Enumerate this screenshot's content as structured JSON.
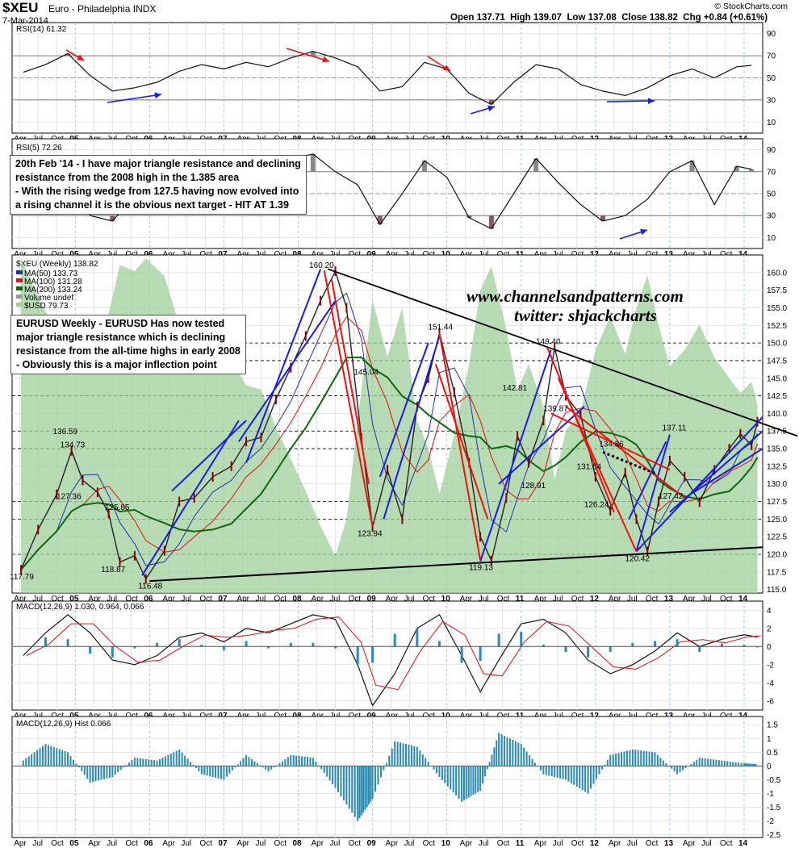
{
  "header": {
    "symbol": "$XEU",
    "name": "Euro - Philadelphia INDX",
    "date": "7-Mar-2014",
    "quote": "Open 137.71  High 139.07  Low 137.08  Close 138.82  Chg +0.84 (+0.61%)",
    "brand": "© StockCharts.com"
  },
  "annotations": {
    "note1": [
      "20th Feb '14 - I have major triangle resistance and declining",
      "resistance from the 2008 high in the 1.385 area",
      "- With the rising wedge from 127.5 having now evolved into",
      "a rising channel it is the obvious next target - HIT AT 1.39"
    ],
    "note2": [
      "EURUSD Weekly - EURUSD Has now tested",
      "major triangle resistance which is declining",
      "resistance from the all-time highs in early 2008",
      "- Obviously this is a major inflection point"
    ],
    "watermark_site": "www.channelsandpatterns.com",
    "watermark_twitter": "twitter: shjackcharts"
  },
  "chart_data": [
    {
      "type": "line",
      "panel": "RSI(14)",
      "title": "RSI(14) 61.32",
      "ylim": [
        0,
        100
      ],
      "yticks": [
        10,
        30,
        50,
        70,
        90
      ],
      "x": [
        2004.3,
        2004.6,
        2004.9,
        2005.2,
        2005.5,
        2005.8,
        2006.1,
        2006.4,
        2006.7,
        2007.0,
        2007.3,
        2007.6,
        2007.9,
        2008.2,
        2008.5,
        2008.8,
        2009.1,
        2009.4,
        2009.7,
        2010.0,
        2010.3,
        2010.6,
        2010.9,
        2011.2,
        2011.5,
        2011.8,
        2012.1,
        2012.4,
        2012.7,
        2013.0,
        2013.3,
        2013.6,
        2013.9,
        2014.1
      ],
      "values": [
        55,
        62,
        72,
        52,
        38,
        41,
        46,
        56,
        62,
        58,
        64,
        60,
        68,
        74,
        68,
        60,
        38,
        42,
        64,
        58,
        36,
        26,
        46,
        62,
        58,
        44,
        38,
        34,
        41,
        52,
        58,
        50,
        60,
        61.32
      ]
    },
    {
      "type": "line",
      "panel": "RSI(5)",
      "title": "RSI(5) 72.26",
      "ylim": [
        0,
        100
      ],
      "yticks": [
        10,
        30,
        50,
        70,
        90
      ],
      "x": [
        2004.3,
        2004.6,
        2004.9,
        2005.2,
        2005.5,
        2005.8,
        2006.1,
        2006.4,
        2006.7,
        2007.0,
        2007.3,
        2007.6,
        2007.9,
        2008.2,
        2008.5,
        2008.8,
        2009.1,
        2009.4,
        2009.7,
        2010.0,
        2010.3,
        2010.6,
        2010.9,
        2011.2,
        2011.5,
        2011.8,
        2012.1,
        2012.4,
        2012.7,
        2013.0,
        2013.3,
        2013.6,
        2013.9,
        2014.1
      ],
      "values": [
        55,
        72,
        78,
        30,
        25,
        48,
        35,
        62,
        70,
        55,
        75,
        60,
        82,
        86,
        70,
        58,
        22,
        50,
        80,
        65,
        28,
        18,
        50,
        82,
        60,
        40,
        25,
        30,
        45,
        70,
        80,
        40,
        75,
        72.26
      ]
    },
    {
      "type": "line",
      "panel": "price",
      "title": "$XEU (Weekly) 138.82",
      "legend": [
        "MA(50) 133.73",
        "MA(100) 131.28",
        "MA(200) 133.24",
        "Volume undef",
        "$USD 79.73"
      ],
      "ylim": [
        114.5,
        162.5
      ],
      "yticks": [
        115.0,
        117.5,
        120.0,
        122.5,
        125.0,
        127.5,
        130.0,
        132.5,
        135.0,
        137.5,
        140.0,
        142.5,
        145.0,
        147.5,
        150.0,
        152.5,
        155.0,
        157.5,
        160.0
      ],
      "x": [
        2004.27,
        2004.5,
        2004.75,
        2004.95,
        2005.1,
        2005.3,
        2005.45,
        2005.6,
        2005.8,
        2005.95,
        2006.2,
        2006.4,
        2006.6,
        2006.85,
        2007.1,
        2007.3,
        2007.5,
        2007.7,
        2007.9,
        2008.1,
        2008.3,
        2008.5,
        2008.65,
        2008.85,
        2009.0,
        2009.2,
        2009.4,
        2009.6,
        2009.75,
        2009.9,
        2010.1,
        2010.3,
        2010.45,
        2010.6,
        2010.8,
        2010.95,
        2011.1,
        2011.3,
        2011.45,
        2011.6,
        2011.8,
        2012.0,
        2012.2,
        2012.4,
        2012.55,
        2012.7,
        2012.85,
        2013.0,
        2013.2,
        2013.4,
        2013.6,
        2013.8,
        2013.95,
        2014.1,
        2014.18
      ],
      "values": [
        117.8,
        123.5,
        128.5,
        134.7,
        130.5,
        128.8,
        125.8,
        118.9,
        119.8,
        116.5,
        120.5,
        127.5,
        128.0,
        131.0,
        132.5,
        136.0,
        136.6,
        142.0,
        146.5,
        151.0,
        156.0,
        160.2,
        155.0,
        136.5,
        123.9,
        132.0,
        125.0,
        141.0,
        145.0,
        151.4,
        143.0,
        133.0,
        122.5,
        119.1,
        128.0,
        136.8,
        133.0,
        139.0,
        149.4,
        142.5,
        139.8,
        131.0,
        126.2,
        131.6,
        125.0,
        120.4,
        127.5,
        133.3,
        131.0,
        127.4,
        132.0,
        135.0,
        137.1,
        135.5,
        138.82
      ],
      "labels": [
        {
          "text": "117.79",
          "x": 2004.27,
          "y": 117.8
        },
        {
          "text": "134.73",
          "x": 2004.95,
          "y": 134.7
        },
        {
          "text": "136.59",
          "x": 2004.85,
          "y": 136.6
        },
        {
          "text": "127.36",
          "x": 2004.9,
          "y": 127.4
        },
        {
          "text": "125.85",
          "x": 2005.55,
          "y": 125.85
        },
        {
          "text": "118.87",
          "x": 2005.5,
          "y": 118.87
        },
        {
          "text": "116.48",
          "x": 2006.0,
          "y": 116.48
        },
        {
          "text": "160.20",
          "x": 2008.3,
          "y": 160.2
        },
        {
          "text": "145.04",
          "x": 2008.9,
          "y": 145.04
        },
        {
          "text": "123.94",
          "x": 2008.95,
          "y": 123.94
        },
        {
          "text": "151.44",
          "x": 2009.9,
          "y": 151.44
        },
        {
          "text": "119.13",
          "x": 2010.45,
          "y": 119.13
        },
        {
          "text": "142.81",
          "x": 2010.9,
          "y": 142.81
        },
        {
          "text": "128.91",
          "x": 2011.15,
          "y": 128.91
        },
        {
          "text": "149.40",
          "x": 2011.35,
          "y": 149.4
        },
        {
          "text": "139.87",
          "x": 2011.45,
          "y": 139.87
        },
        {
          "text": "134.86",
          "x": 2012.2,
          "y": 134.86
        },
        {
          "text": "131.64",
          "x": 2011.9,
          "y": 131.64
        },
        {
          "text": "126.24",
          "x": 2012.0,
          "y": 126.24
        },
        {
          "text": "120.42",
          "x": 2012.55,
          "y": 120.42
        },
        {
          "text": "137.11",
          "x": 2013.05,
          "y": 137.11
        },
        {
          "text": "127.42",
          "x": 2013.0,
          "y": 127.42
        }
      ]
    },
    {
      "type": "line",
      "panel": "MACD",
      "title": "MACD(12,26,9) 1.030, 0.964, 0.066",
      "ylim": [
        -7,
        5
      ],
      "yticks": [
        -6,
        -4,
        -2,
        0,
        2,
        4
      ],
      "x": [
        2004.3,
        2004.6,
        2004.9,
        2005.2,
        2005.5,
        2005.8,
        2006.1,
        2006.4,
        2006.7,
        2007.0,
        2007.3,
        2007.6,
        2007.9,
        2008.2,
        2008.5,
        2008.8,
        2009.0,
        2009.3,
        2009.6,
        2009.9,
        2010.2,
        2010.45,
        2010.7,
        2011.0,
        2011.3,
        2011.6,
        2011.9,
        2012.2,
        2012.5,
        2012.8,
        2013.1,
        2013.4,
        2013.7,
        2014.0,
        2014.18
      ],
      "values": [
        -1.0,
        1.5,
        3.5,
        1.5,
        -1.5,
        -2.0,
        -1.0,
        1.0,
        1.5,
        0.5,
        2.0,
        1.5,
        2.5,
        3.5,
        3.0,
        -2.0,
        -6.5,
        -3.0,
        2.0,
        3.5,
        -1.0,
        -5.0,
        -1.5,
        2.5,
        3.0,
        1.5,
        -1.5,
        -3.0,
        -2.0,
        -0.5,
        1.5,
        0.0,
        0.8,
        1.3,
        1.03
      ]
    },
    {
      "type": "bar",
      "panel": "MACD Hist",
      "title": "MACD(12,26,9) Hist 0.066",
      "ylim": [
        -2.6,
        1.8
      ],
      "yticks": [
        -2.5,
        -2.0,
        -1.5,
        -1.0,
        -0.5,
        0.0,
        0.5,
        1.0,
        1.5
      ],
      "x": [
        2004.3,
        2004.6,
        2004.9,
        2005.2,
        2005.5,
        2005.8,
        2006.1,
        2006.4,
        2006.7,
        2007.0,
        2007.3,
        2007.6,
        2007.9,
        2008.2,
        2008.5,
        2008.8,
        2009.0,
        2009.3,
        2009.6,
        2009.9,
        2010.2,
        2010.45,
        2010.7,
        2011.0,
        2011.3,
        2011.6,
        2011.9,
        2012.2,
        2012.5,
        2012.8,
        2013.1,
        2013.4,
        2013.7,
        2014.0,
        2014.18
      ],
      "values": [
        0.2,
        0.8,
        0.5,
        -0.6,
        -0.4,
        0.3,
        0.2,
        0.6,
        -0.3,
        -0.5,
        0.4,
        -0.2,
        0.4,
        0.3,
        -0.8,
        -2.0,
        -1.2,
        0.9,
        0.7,
        -0.4,
        -1.3,
        -0.9,
        1.2,
        0.8,
        -0.3,
        -0.5,
        -1.0,
        0.4,
        0.6,
        0.5,
        -0.3,
        0.3,
        0.2,
        0.1,
        0.066
      ]
    }
  ],
  "x_axis": {
    "min": 2004.15,
    "max": 2014.25,
    "month_labels": [
      "Apr",
      "Jul",
      "Oct",
      "05",
      "Apr",
      "Jul",
      "Oct",
      "06",
      "Apr",
      "Jul",
      "Oct",
      "07",
      "Apr",
      "Jul",
      "Oct",
      "08",
      "Apr",
      "Jul",
      "Oct",
      "09",
      "Apr",
      "Jul",
      "Oct",
      "10",
      "Apr",
      "Jul",
      "Oct",
      "11",
      "Apr",
      "Jul",
      "Oct",
      "12",
      "Apr",
      "Jul",
      "Oct",
      "13",
      "Apr",
      "Jul",
      "Oct",
      "14"
    ]
  },
  "colors": {
    "ma50": "#2233aa",
    "ma100": "#dd1111",
    "ma200": "#116611",
    "usd_area": "#9fcf9a",
    "trend_blue": "#1a1aee",
    "trend_red": "#ee1111",
    "rsi_red_arrow": "#ee1111",
    "rsi_blue_arrow": "#1a1aee",
    "macd_hist": "#2a8ab0",
    "oversold_fill": "#8a5a5a"
  }
}
